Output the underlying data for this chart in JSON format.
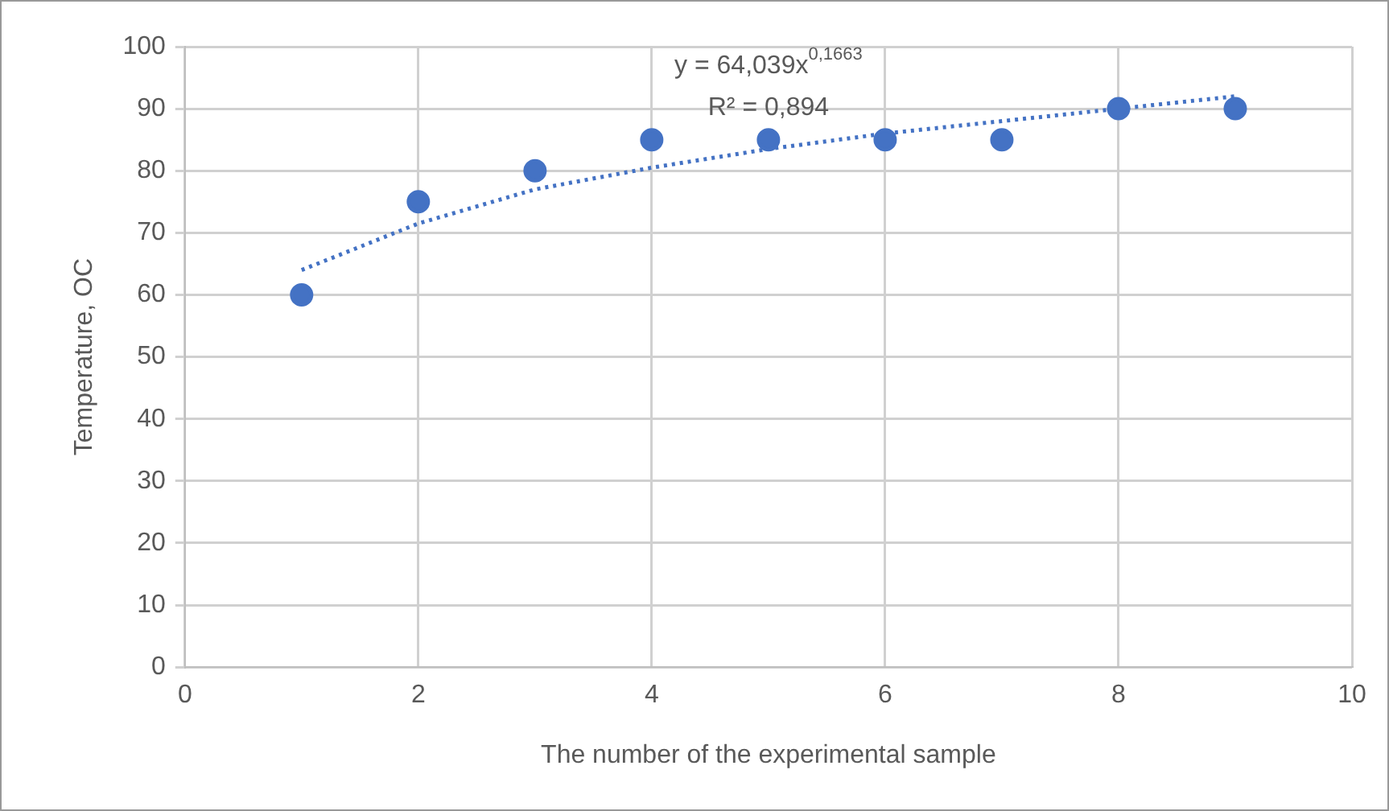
{
  "chart_data": {
    "type": "scatter",
    "xlabel": "The number of the experimental sample",
    "ylabel": "Temperature, OC",
    "xlim": [
      0,
      10
    ],
    "xticks": [
      0,
      2,
      4,
      6,
      8,
      10
    ],
    "ylim": [
      0,
      100
    ],
    "yticks": [
      0,
      10,
      20,
      30,
      40,
      50,
      60,
      70,
      80,
      90,
      100
    ],
    "grid": true,
    "legend": false,
    "marker": "circle",
    "annotations": [
      "y = 64,039x$^{0,1663}$",
      "R² = 0,894"
    ],
    "series": [
      {
        "color": "#4472c4",
        "x": [
          1,
          2,
          3,
          4,
          5,
          6,
          7,
          8,
          9
        ],
        "values": [
          60,
          75,
          80,
          85,
          85,
          85,
          85,
          90,
          90
        ]
      },
      {
        "type": "line",
        "color": "#4472c4",
        "line_style": "dotted",
        "marker": "none",
        "x": [
          1,
          2,
          3,
          4,
          5,
          6,
          7,
          8,
          9
        ],
        "values": [
          64,
          71.5,
          77,
          80.5,
          83.5,
          86,
          88,
          90,
          92
        ]
      }
    ]
  }
}
